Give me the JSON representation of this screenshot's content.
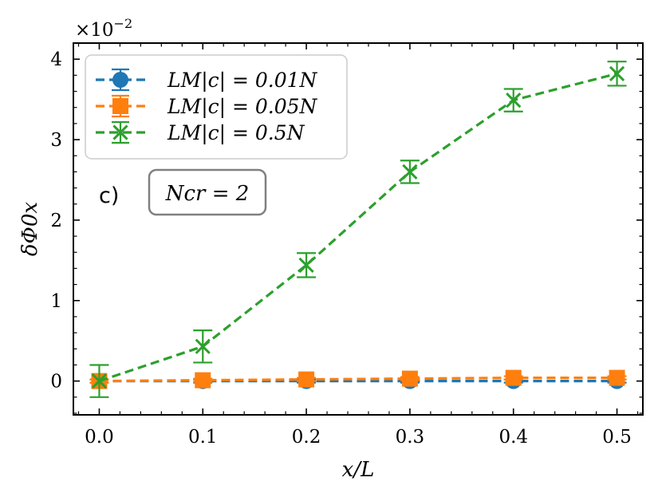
{
  "chart_data": {
    "type": "line",
    "title": "",
    "xlabel": "x/L",
    "ylabel": "δΦ0x",
    "y_scale_label": "×10^-2",
    "y_scale_base": "×10",
    "y_scale_exp": "−2",
    "xlim": [
      -0.025,
      0.525
    ],
    "ylim": [
      -0.42,
      4.2
    ],
    "x_ticks": [
      0.0,
      0.1,
      0.2,
      0.3,
      0.4,
      0.5
    ],
    "x_tick_labels": [
      "0.0",
      "0.1",
      "0.2",
      "0.3",
      "0.4",
      "0.5"
    ],
    "y_ticks": [
      0,
      1,
      2,
      3,
      4
    ],
    "y_tick_labels": [
      "0",
      "1",
      "2",
      "3",
      "4"
    ],
    "grid": false,
    "legend_position": "top-left",
    "annotation_panel": "c)",
    "annotation_box": "Ncr = 2",
    "series": [
      {
        "name": "LM|c| = 0.01N",
        "color": "#1f77b4",
        "marker": "circle",
        "x": [
          0.0,
          0.1,
          0.2,
          0.3,
          0.4,
          0.5
        ],
        "y": [
          0.0,
          0.0,
          0.0,
          0.0,
          0.0,
          0.0
        ],
        "yerr": [
          0.02,
          0.02,
          0.02,
          0.02,
          0.02,
          0.02
        ]
      },
      {
        "name": "LM|c| = 0.05N",
        "color": "#ff7f0e",
        "marker": "square",
        "x": [
          0.0,
          0.1,
          0.2,
          0.3,
          0.4,
          0.5
        ],
        "y": [
          0.0,
          0.01,
          0.02,
          0.03,
          0.04,
          0.04
        ],
        "yerr": [
          0.02,
          0.02,
          0.02,
          0.02,
          0.02,
          0.02
        ]
      },
      {
        "name": "LM|c| = 0.5N",
        "color": "#2ca02c",
        "marker": "x",
        "x": [
          0.0,
          0.1,
          0.2,
          0.3,
          0.4,
          0.5
        ],
        "y": [
          0.0,
          0.43,
          1.44,
          2.6,
          3.49,
          3.82
        ],
        "yerr": [
          0.2,
          0.2,
          0.15,
          0.14,
          0.14,
          0.15
        ]
      }
    ]
  }
}
